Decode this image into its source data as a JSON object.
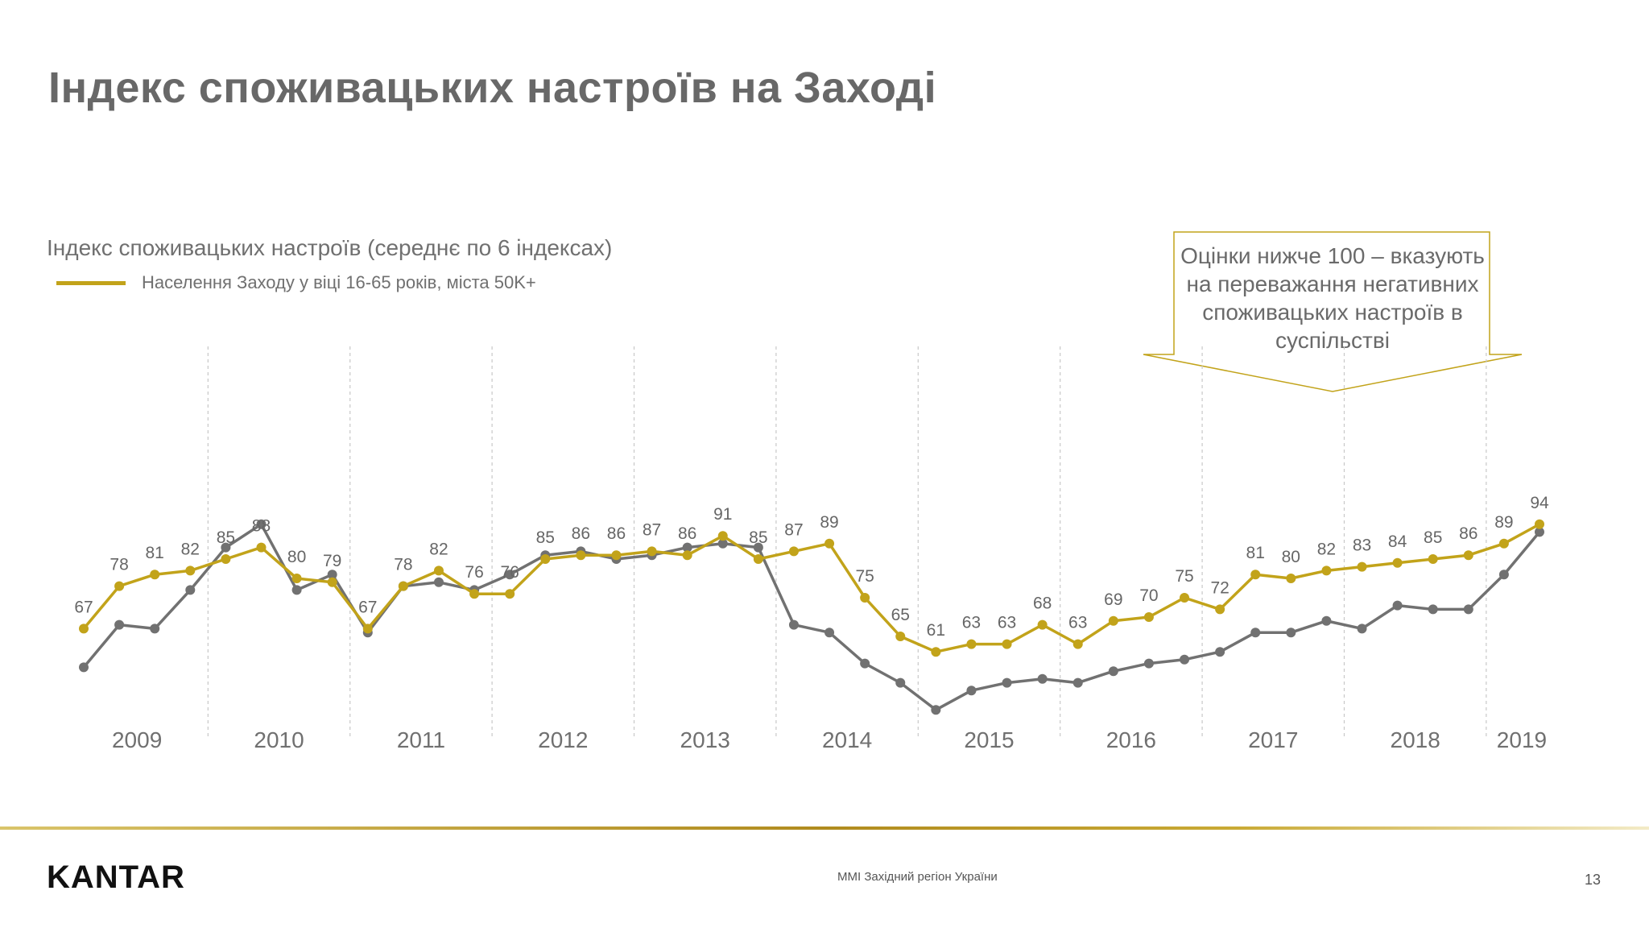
{
  "title": "Індекс споживацьких настроїв на Заході",
  "subtitle": "Індекс споживацьких настроїв (середнє по 6 індексах)",
  "callout": {
    "text": "Оцінки нижче 100 – вказують на переважання негативних споживацьких настроїв в суспільстві"
  },
  "footer": {
    "logo": "KANTAR",
    "center_text": "MMI Західний регіон України",
    "page_number": "13"
  },
  "colors": {
    "gold": "#C2A31A",
    "grey": "#717171",
    "label": "#666666",
    "divider": "#c8c8c8"
  },
  "chart_data": {
    "type": "line",
    "title": "",
    "xlabel": "",
    "ylabel": "",
    "ylim": [
      40,
      140
    ],
    "grid": false,
    "legend_position": "top-left",
    "year_groups": [
      {
        "label": "2009",
        "count": 4
      },
      {
        "label": "2010",
        "count": 4
      },
      {
        "label": "2011",
        "count": 4
      },
      {
        "label": "2012",
        "count": 4
      },
      {
        "label": "2013",
        "count": 4
      },
      {
        "label": "2014",
        "count": 4
      },
      {
        "label": "2015",
        "count": 4
      },
      {
        "label": "2016",
        "count": 4
      },
      {
        "label": "2017",
        "count": 4
      },
      {
        "label": "2018",
        "count": 4
      },
      {
        "label": "2019",
        "count": 2
      }
    ],
    "series": [
      {
        "name": "Населення Заходу у віці 16-65 років, міста 50K+",
        "color": "#C2A31A",
        "labeled": true,
        "values": [
          67,
          78,
          81,
          82,
          85,
          88,
          80,
          79,
          67,
          78,
          82,
          76,
          76,
          85,
          86,
          86,
          87,
          86,
          91,
          85,
          87,
          89,
          75,
          65,
          61,
          63,
          63,
          68,
          63,
          69,
          70,
          75,
          72,
          81,
          80,
          82,
          83,
          84,
          85,
          86,
          89,
          94
        ]
      },
      {
        "color": "#717171",
        "labeled": false,
        "values": [
          57,
          68,
          67,
          77,
          88,
          94,
          77,
          81,
          66,
          78,
          79,
          77,
          81,
          86,
          87,
          85,
          86,
          88,
          89,
          88,
          68,
          66,
          58,
          53,
          46,
          51,
          53,
          54,
          53,
          56,
          58,
          59,
          61,
          66,
          66,
          69,
          67,
          73,
          72,
          72,
          81,
          92
        ]
      }
    ]
  }
}
